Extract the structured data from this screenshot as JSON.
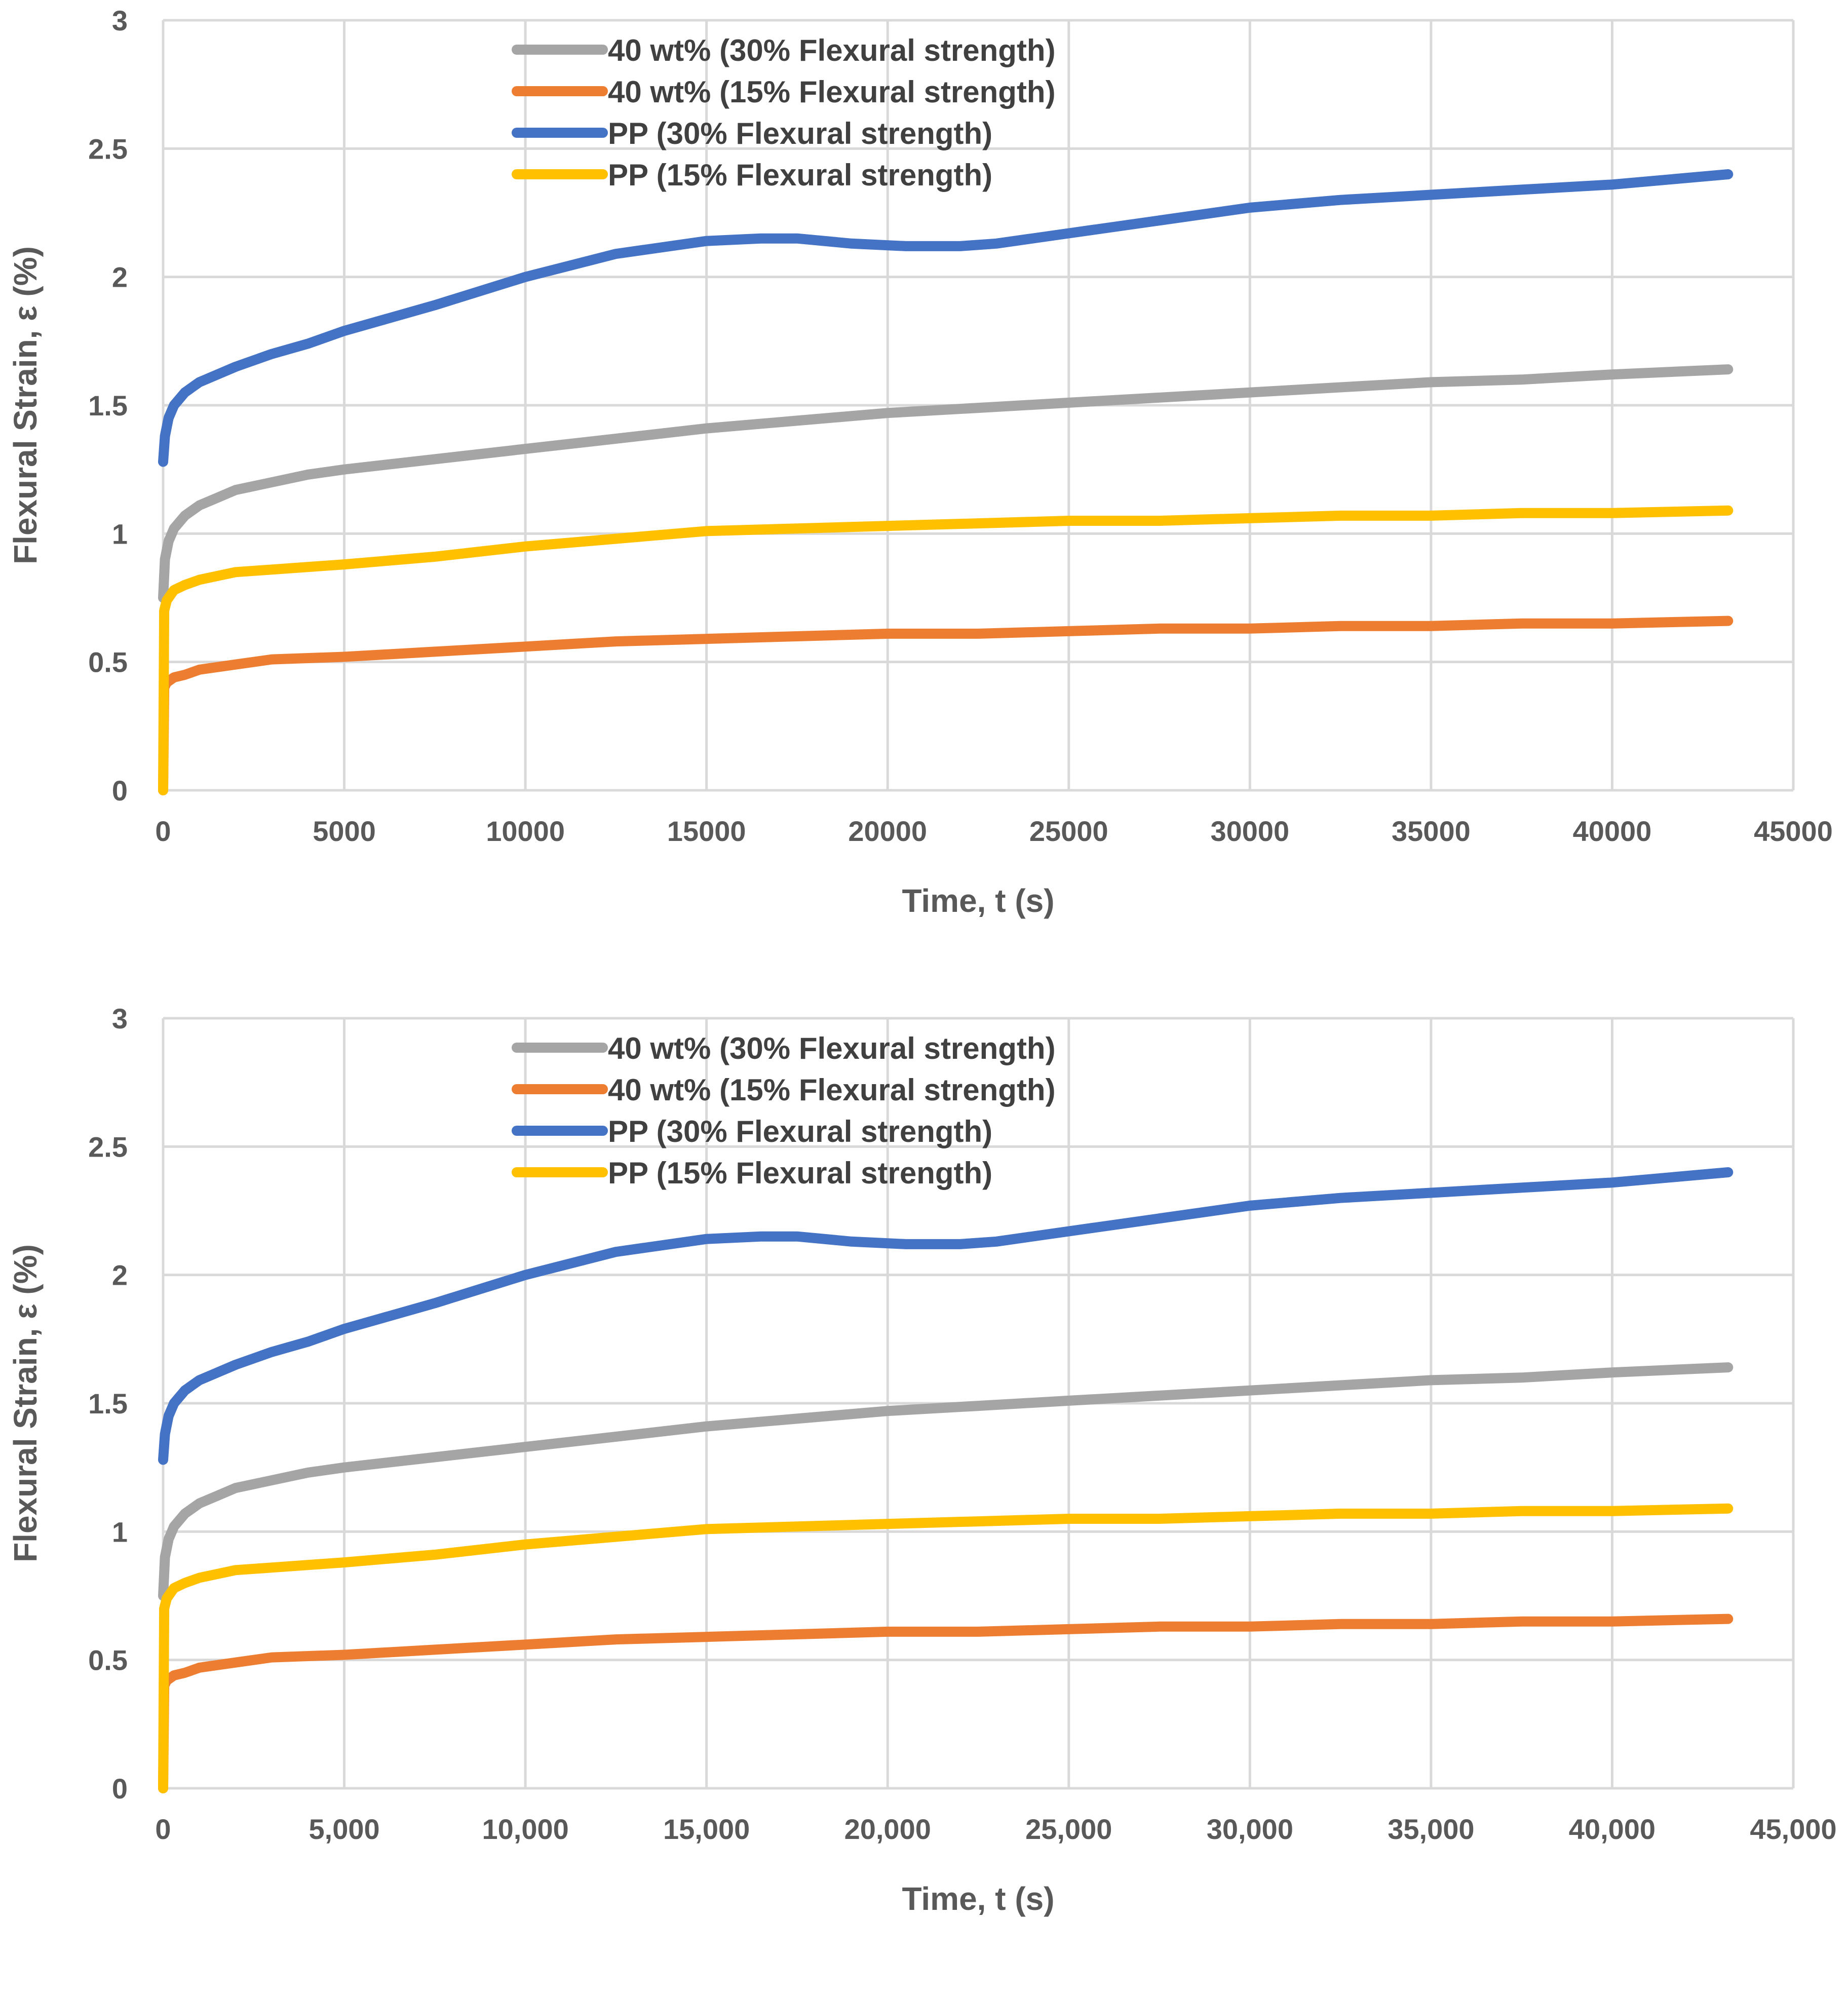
{
  "chart_data": [
    {
      "type": "line",
      "title": "",
      "xlabel": "Time, t (s)",
      "ylabel": "Flexural Strain, ε (%)",
      "xlim": [
        0,
        45000
      ],
      "ylim": [
        0,
        3
      ],
      "xticks": [
        0,
        5000,
        10000,
        15000,
        20000,
        25000,
        30000,
        35000,
        40000,
        45000
      ],
      "xtick_labels": [
        "0",
        "5000",
        "10000",
        "15000",
        "20000",
        "25000",
        "30000",
        "35000",
        "40000",
        "45000"
      ],
      "yticks": [
        0,
        0.5,
        1,
        1.5,
        2,
        2.5,
        3
      ],
      "ytick_labels": [
        "0",
        "0.5",
        "1",
        "1.5",
        "2",
        "2.5",
        "3"
      ],
      "grid": true,
      "legend_position": "top-center",
      "series": [
        {
          "name": "40 wt% (30% Flexural strength)",
          "color": "#a5a5a5",
          "x": [
            0,
            50,
            150,
            300,
            600,
            1000,
            1500,
            2000,
            3000,
            4000,
            5000,
            7500,
            10000,
            12500,
            15000,
            17500,
            20000,
            22500,
            25000,
            27500,
            30000,
            32500,
            35000,
            37500,
            40000,
            43200
          ],
          "y": [
            0.75,
            0.9,
            0.97,
            1.02,
            1.07,
            1.11,
            1.14,
            1.17,
            1.2,
            1.23,
            1.25,
            1.29,
            1.33,
            1.37,
            1.41,
            1.44,
            1.47,
            1.49,
            1.51,
            1.53,
            1.55,
            1.57,
            1.59,
            1.6,
            1.62,
            1.64
          ]
        },
        {
          "name": "40 wt% (15% Flexural strength)",
          "color": "#ed7d31",
          "x": [
            0,
            30,
            100,
            300,
            600,
            1000,
            2000,
            3000,
            5000,
            7500,
            10000,
            12500,
            15000,
            17500,
            20000,
            22500,
            25000,
            27500,
            30000,
            32500,
            35000,
            37500,
            40000,
            43200
          ],
          "y": [
            0,
            0.4,
            0.42,
            0.44,
            0.45,
            0.47,
            0.49,
            0.51,
            0.52,
            0.54,
            0.56,
            0.58,
            0.59,
            0.6,
            0.61,
            0.61,
            0.62,
            0.63,
            0.63,
            0.64,
            0.64,
            0.65,
            0.65,
            0.66
          ]
        },
        {
          "name": "PP (30% Flexural strength)",
          "color": "#4472c4",
          "x": [
            0,
            50,
            150,
            300,
            600,
            1000,
            1500,
            2000,
            3000,
            4000,
            5000,
            7500,
            10000,
            12500,
            15000,
            16500,
            17500,
            19000,
            20500,
            22000,
            23000,
            25000,
            27500,
            30000,
            32500,
            35000,
            37500,
            40000,
            43200
          ],
          "y": [
            1.28,
            1.38,
            1.45,
            1.5,
            1.55,
            1.59,
            1.62,
            1.65,
            1.7,
            1.74,
            1.79,
            1.89,
            2.0,
            2.09,
            2.14,
            2.15,
            2.15,
            2.13,
            2.12,
            2.12,
            2.13,
            2.17,
            2.22,
            2.27,
            2.3,
            2.32,
            2.34,
            2.36,
            2.4
          ]
        },
        {
          "name": "PP (15% Flexural strength)",
          "color": "#ffc000",
          "x": [
            0,
            30,
            100,
            300,
            600,
            1000,
            2000,
            3000,
            5000,
            7500,
            10000,
            12500,
            15000,
            17500,
            20000,
            22500,
            25000,
            27500,
            30000,
            32500,
            35000,
            37500,
            40000,
            43200
          ],
          "y": [
            0,
            0.7,
            0.74,
            0.78,
            0.8,
            0.82,
            0.85,
            0.86,
            0.88,
            0.91,
            0.95,
            0.98,
            1.01,
            1.02,
            1.03,
            1.04,
            1.05,
            1.05,
            1.06,
            1.07,
            1.07,
            1.08,
            1.08,
            1.09
          ]
        }
      ]
    },
    {
      "type": "line",
      "title": "",
      "xlabel": "Time, t (s)",
      "ylabel": "Flexural Strain, ε (%)",
      "xlim": [
        0,
        45000
      ],
      "ylim": [
        0,
        3
      ],
      "xticks": [
        0,
        5000,
        10000,
        15000,
        20000,
        25000,
        30000,
        35000,
        40000,
        45000
      ],
      "xtick_labels": [
        "0",
        "5,000",
        "10,000",
        "15,000",
        "20,000",
        "25,000",
        "30,000",
        "35,000",
        "40,000",
        "45,000"
      ],
      "yticks": [
        0,
        0.5,
        1,
        1.5,
        2,
        2.5,
        3
      ],
      "ytick_labels": [
        "0",
        "0.5",
        "1",
        "1.5",
        "2",
        "2.5",
        "3"
      ],
      "grid": true,
      "legend_position": "top-center",
      "series": [
        {
          "name": "40 wt% (30% Flexural strength)",
          "color": "#a5a5a5",
          "x": [
            0,
            50,
            150,
            300,
            600,
            1000,
            1500,
            2000,
            3000,
            4000,
            5000,
            7500,
            10000,
            12500,
            15000,
            17500,
            20000,
            22500,
            25000,
            27500,
            30000,
            32500,
            35000,
            37500,
            40000,
            43200
          ],
          "y": [
            0.75,
            0.9,
            0.97,
            1.02,
            1.07,
            1.11,
            1.14,
            1.17,
            1.2,
            1.23,
            1.25,
            1.29,
            1.33,
            1.37,
            1.41,
            1.44,
            1.47,
            1.49,
            1.51,
            1.53,
            1.55,
            1.57,
            1.59,
            1.6,
            1.62,
            1.64
          ]
        },
        {
          "name": "40 wt% (15% Flexural strength)",
          "color": "#ed7d31",
          "x": [
            0,
            30,
            100,
            300,
            600,
            1000,
            2000,
            3000,
            5000,
            7500,
            10000,
            12500,
            15000,
            17500,
            20000,
            22500,
            25000,
            27500,
            30000,
            32500,
            35000,
            37500,
            40000,
            43200
          ],
          "y": [
            0,
            0.4,
            0.42,
            0.44,
            0.45,
            0.47,
            0.49,
            0.51,
            0.52,
            0.54,
            0.56,
            0.58,
            0.59,
            0.6,
            0.61,
            0.61,
            0.62,
            0.63,
            0.63,
            0.64,
            0.64,
            0.65,
            0.65,
            0.66
          ]
        },
        {
          "name": "PP (30% Flexural strength)",
          "color": "#4472c4",
          "x": [
            0,
            50,
            150,
            300,
            600,
            1000,
            1500,
            2000,
            3000,
            4000,
            5000,
            7500,
            10000,
            12500,
            15000,
            16500,
            17500,
            19000,
            20500,
            22000,
            23000,
            25000,
            27500,
            30000,
            32500,
            35000,
            37500,
            40000,
            43200
          ],
          "y": [
            1.28,
            1.38,
            1.45,
            1.5,
            1.55,
            1.59,
            1.62,
            1.65,
            1.7,
            1.74,
            1.79,
            1.89,
            2.0,
            2.09,
            2.14,
            2.15,
            2.15,
            2.13,
            2.12,
            2.12,
            2.13,
            2.17,
            2.22,
            2.27,
            2.3,
            2.32,
            2.34,
            2.36,
            2.4
          ]
        },
        {
          "name": "PP (15% Flexural strength)",
          "color": "#ffc000",
          "x": [
            0,
            30,
            100,
            300,
            600,
            1000,
            2000,
            3000,
            5000,
            7500,
            10000,
            12500,
            15000,
            17500,
            20000,
            22500,
            25000,
            27500,
            30000,
            32500,
            35000,
            37500,
            40000,
            43200
          ],
          "y": [
            0,
            0.7,
            0.74,
            0.78,
            0.8,
            0.82,
            0.85,
            0.86,
            0.88,
            0.91,
            0.95,
            0.98,
            1.01,
            1.02,
            1.03,
            1.04,
            1.05,
            1.05,
            1.06,
            1.07,
            1.07,
            1.08,
            1.08,
            1.09
          ]
        }
      ]
    }
  ]
}
